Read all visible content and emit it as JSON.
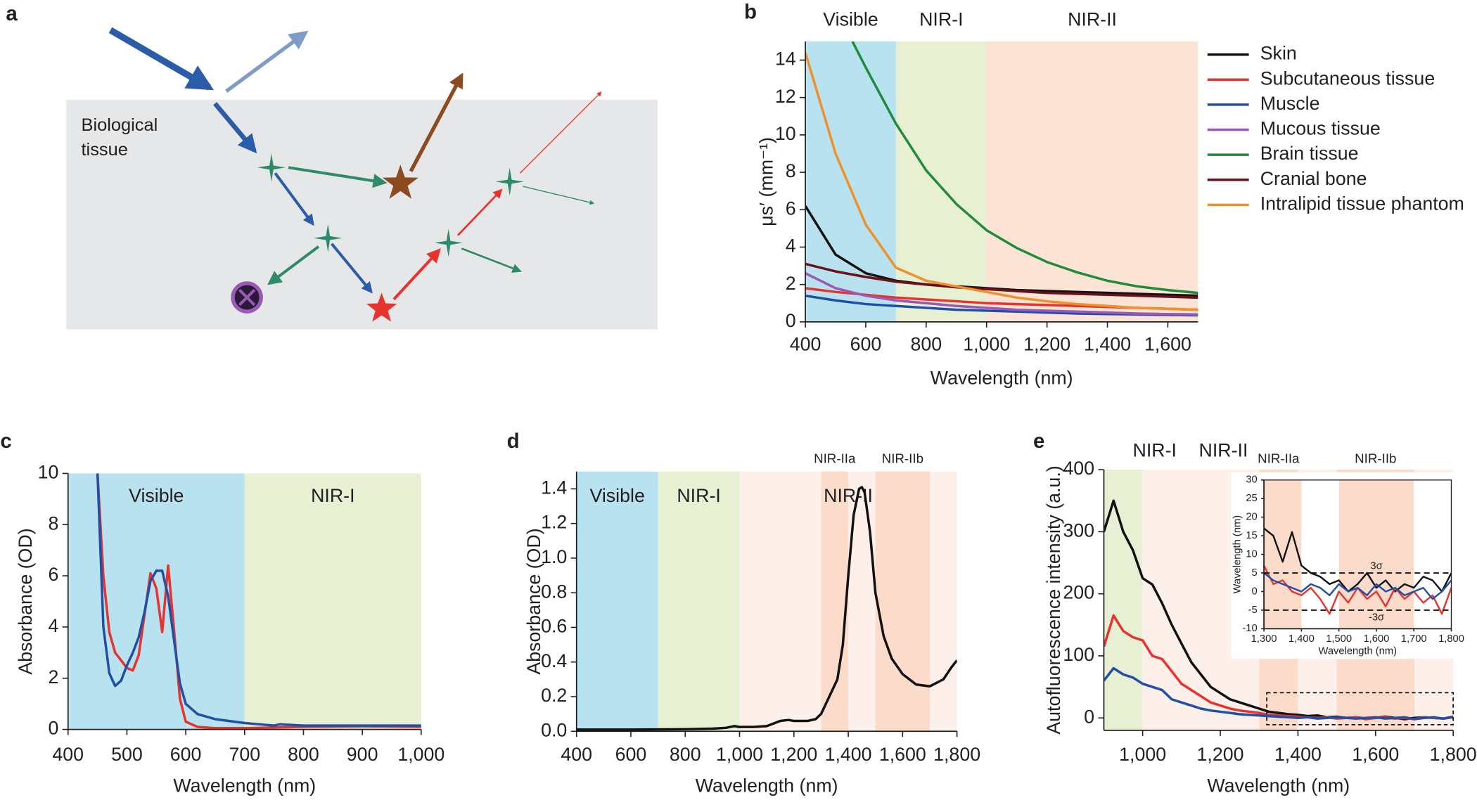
{
  "diagram": {
    "label": "a",
    "tissue_label": [
      "Biological",
      "tissue"
    ]
  },
  "chart_data": [
    {
      "type": "line",
      "panel": "b",
      "ylabel": "μs′ (mm⁻¹)",
      "xlabel": "Wavelength (nm)",
      "xlim": [
        400,
        1700
      ],
      "ylim": [
        0,
        15
      ],
      "xticks": [
        400,
        600,
        800,
        {
          "value": 1000,
          "label": "1,000"
        },
        {
          "value": 1200,
          "label": "1,200"
        },
        {
          "value": 1400,
          "label": "1,400"
        },
        {
          "value": 1600,
          "label": "1,600"
        }
      ],
      "yticks": [
        0,
        2,
        4,
        6,
        8,
        10,
        12,
        14
      ],
      "regions": [
        {
          "name": "Visible",
          "from": 400,
          "to": 700,
          "color": "#b8e2ef"
        },
        {
          "name": "NIR-I",
          "from": 700,
          "to": 1000,
          "color": "#e8f0d4"
        },
        {
          "name": "NIR-II",
          "from": 1000,
          "to": 1700,
          "color": "#fbe3d6"
        }
      ],
      "x": [
        400,
        500,
        600,
        700,
        800,
        900,
        1000,
        1100,
        1200,
        1300,
        1400,
        1500,
        1600,
        1700
      ],
      "legend": true,
      "series": [
        {
          "name": "Skin",
          "color": "#111111",
          "values": [
            6.2,
            3.6,
            2.6,
            2.2,
            2.0,
            1.9,
            1.8,
            1.7,
            1.65,
            1.6,
            1.55,
            1.5,
            1.45,
            1.4
          ]
        },
        {
          "name": "Subcutaneous tissue",
          "color": "#e8322e",
          "values": [
            1.8,
            1.6,
            1.45,
            1.3,
            1.2,
            1.1,
            1.0,
            0.95,
            0.9,
            0.85,
            0.8,
            0.75,
            0.7,
            0.65
          ]
        },
        {
          "name": "Muscle",
          "color": "#1f4fa8",
          "values": [
            1.4,
            1.15,
            0.95,
            0.85,
            0.75,
            0.65,
            0.6,
            0.55,
            0.5,
            0.45,
            0.42,
            0.4,
            0.37,
            0.35
          ]
        },
        {
          "name": "Mucous tissue",
          "color": "#9b59b6",
          "values": [
            2.6,
            1.8,
            1.4,
            1.15,
            1.0,
            0.85,
            0.75,
            0.65,
            0.6,
            0.55,
            0.5,
            0.45,
            0.42,
            0.4
          ]
        },
        {
          "name": "Brain tissue",
          "color": "#1e8c3a",
          "x": [
            556,
            600,
            700,
            800,
            900,
            1000,
            1100,
            1200,
            1300,
            1400,
            1500,
            1600,
            1700
          ],
          "values": [
            15,
            13.6,
            10.6,
            8.1,
            6.3,
            4.9,
            3.95,
            3.2,
            2.65,
            2.2,
            1.9,
            1.7,
            1.55
          ]
        },
        {
          "name": "Cranial bone",
          "color": "#6b0f1a",
          "values": [
            3.1,
            2.7,
            2.4,
            2.15,
            2.0,
            1.85,
            1.75,
            1.65,
            1.55,
            1.5,
            1.45,
            1.4,
            1.35,
            1.3
          ]
        },
        {
          "name": "Intralipid tissue phantom",
          "color": "#f0902a",
          "values": [
            14.4,
            9.0,
            5.2,
            2.9,
            2.2,
            1.9,
            1.6,
            1.3,
            1.1,
            0.95,
            0.85,
            0.75,
            0.7,
            0.65
          ]
        }
      ]
    },
    {
      "type": "line",
      "panel": "c",
      "ylabel": "Absorbance (OD)",
      "xlabel": "Wavelength (nm)",
      "xlim": [
        400,
        1000
      ],
      "ylim": [
        0,
        10
      ],
      "xticks": [
        400,
        500,
        600,
        700,
        800,
        900,
        {
          "value": 1000,
          "label": "1,000"
        }
      ],
      "yticks": [
        0,
        2,
        4,
        6,
        8,
        10
      ],
      "regions": [
        {
          "name": "Visible",
          "from": 400,
          "to": 700,
          "color": "#b8e2ef"
        },
        {
          "name": "NIR-I",
          "from": 700,
          "to": 1000,
          "color": "#e8f0d4"
        }
      ],
      "series": [
        {
          "color": "#e8322e",
          "x": [
            450,
            460,
            470,
            480,
            490,
            500,
            510,
            520,
            530,
            540,
            550,
            560,
            570,
            580,
            590,
            600,
            620,
            650,
            700,
            800,
            900,
            1000
          ],
          "values": [
            10,
            6,
            3.8,
            3.0,
            2.7,
            2.4,
            2.3,
            2.9,
            4.5,
            6.1,
            5.5,
            3.8,
            6.4,
            3.9,
            1.2,
            0.3,
            0.1,
            0.05,
            0.05,
            0.1,
            0.12,
            0.1
          ]
        },
        {
          "color": "#1f4fa8",
          "x": [
            450,
            460,
            470,
            480,
            490,
            500,
            510,
            520,
            530,
            540,
            550,
            560,
            570,
            580,
            590,
            600,
            620,
            650,
            700,
            750,
            760,
            800,
            900,
            1000
          ],
          "values": [
            10,
            4,
            2.2,
            1.7,
            1.9,
            2.5,
            3.0,
            3.6,
            4.6,
            5.8,
            6.2,
            6.2,
            5.2,
            3.5,
            1.8,
            1.0,
            0.6,
            0.4,
            0.25,
            0.15,
            0.2,
            0.15,
            0.15,
            0.15
          ]
        }
      ]
    },
    {
      "type": "line",
      "panel": "d",
      "ylabel": "Absorbance (OD)",
      "xlabel": "Wavelength (nm)",
      "xlim": [
        400,
        1800
      ],
      "ylim": [
        0,
        1.5
      ],
      "xticks": [
        400,
        600,
        800,
        {
          "value": 1000,
          "label": "1,000"
        },
        {
          "value": 1200,
          "label": "1,200"
        },
        {
          "value": 1400,
          "label": "1,400"
        },
        {
          "value": 1600,
          "label": "1,600"
        },
        {
          "value": 1800,
          "label": "1,800"
        }
      ],
      "yticks": [
        {
          "value": 0,
          "label": "0.0"
        },
        0.2,
        0.4,
        0.6,
        0.8,
        {
          "value": 1,
          "label": "1.0"
        },
        1.2,
        1.4
      ],
      "regions": [
        {
          "name": "Visible",
          "from": 400,
          "to": 700,
          "color": "#b8e2ef"
        },
        {
          "name": "NIR-I",
          "from": 700,
          "to": 1000,
          "color": "#e8f0d4"
        },
        {
          "name": "NIR-II",
          "from": 1000,
          "to": 1800,
          "color": "#fdf0ea"
        }
      ],
      "subregions": [
        {
          "name": "NIR-IIa",
          "from": 1300,
          "to": 1400,
          "color": "#fbdccb"
        },
        {
          "name": "NIR-IIb",
          "from": 1500,
          "to": 1700,
          "color": "#fbdccb"
        }
      ],
      "series": [
        {
          "color": "#111111",
          "x": [
            400,
            600,
            800,
            900,
            950,
            980,
            1000,
            1050,
            1100,
            1150,
            1180,
            1200,
            1250,
            1280,
            1300,
            1330,
            1360,
            1380,
            1400,
            1420,
            1440,
            1450,
            1460,
            1480,
            1500,
            1530,
            1560,
            1600,
            1650,
            1700,
            1750,
            1780,
            1800
          ],
          "values": [
            0.01,
            0.01,
            0.012,
            0.015,
            0.02,
            0.03,
            0.025,
            0.025,
            0.03,
            0.06,
            0.065,
            0.06,
            0.06,
            0.07,
            0.1,
            0.2,
            0.3,
            0.5,
            0.9,
            1.25,
            1.4,
            1.41,
            1.38,
            1.15,
            0.8,
            0.55,
            0.42,
            0.33,
            0.27,
            0.26,
            0.3,
            0.37,
            0.41
          ]
        }
      ]
    },
    {
      "type": "line",
      "panel": "e",
      "ylabel": "Autofluorescence intensity (a.u.)",
      "xlabel": "Wavelength (nm)",
      "xlim": [
        900,
        1800
      ],
      "ylim": [
        -20,
        400
      ],
      "xticks": [
        {
          "value": 1000,
          "label": "1,000"
        },
        {
          "value": 1200,
          "label": "1,200"
        },
        {
          "value": 1400,
          "label": "1,400"
        },
        {
          "value": 1600,
          "label": "1,600"
        },
        {
          "value": 1800,
          "label": "1,800"
        }
      ],
      "yticks": [
        0,
        100,
        200,
        300,
        400
      ],
      "regions": [
        {
          "name": "NIR-I",
          "from": 900,
          "to": 1000,
          "color": "#e8f0d4"
        },
        {
          "name": "NIR-II",
          "from": 1000,
          "to": 1800,
          "color": "#fdf0ea"
        }
      ],
      "subregions": [
        {
          "name": "NIR-IIa",
          "from": 1300,
          "to": 1400,
          "color": "#fbdccb"
        },
        {
          "name": "NIR-IIb",
          "from": 1500,
          "to": 1700,
          "color": "#fbdccb"
        }
      ],
      "x": [
        900,
        925,
        950,
        975,
        1000,
        1025,
        1050,
        1075,
        1100,
        1125,
        1150,
        1175,
        1200,
        1225,
        1250,
        1275,
        1300,
        1325,
        1350,
        1375,
        1400,
        1425,
        1450,
        1475,
        1500,
        1525,
        1550,
        1575,
        1600,
        1625,
        1650,
        1675,
        1700,
        1725,
        1750,
        1775,
        1800
      ],
      "series": [
        {
          "color": "#111111",
          "values": [
            300,
            350,
            300,
            270,
            225,
            215,
            185,
            150,
            120,
            90,
            70,
            50,
            40,
            30,
            25,
            20,
            15,
            10,
            8,
            6,
            5,
            3,
            4,
            1,
            2,
            0,
            1,
            -1,
            0,
            2,
            0,
            -2,
            0,
            1,
            0,
            -1,
            2
          ]
        },
        {
          "color": "#e8322e",
          "values": [
            115,
            165,
            140,
            130,
            125,
            100,
            95,
            75,
            55,
            45,
            35,
            25,
            20,
            15,
            12,
            10,
            8,
            5,
            4,
            3,
            2,
            1,
            0,
            1,
            -1,
            0,
            1,
            -2,
            0,
            1,
            -1,
            0,
            -2,
            1,
            0,
            -1,
            1
          ]
        },
        {
          "color": "#1f4fa8",
          "values": [
            60,
            80,
            70,
            65,
            55,
            50,
            45,
            30,
            25,
            20,
            15,
            12,
            10,
            8,
            6,
            5,
            4,
            3,
            2,
            1,
            0,
            1,
            -1,
            0,
            1,
            0,
            -1,
            0,
            1,
            -1,
            0,
            1,
            -2,
            0,
            1,
            -1,
            2
          ]
        }
      ]
    },
    {
      "type": "line",
      "ylabel": "Wavelength (nm)",
      "xlabel": "Wavelength (nm)",
      "xlim": [
        1300,
        1800
      ],
      "ylim": [
        -10,
        30
      ],
      "xticks": [
        {
          "value": 1300,
          "label": "1,300"
        },
        {
          "value": 1400,
          "label": "1,400"
        },
        {
          "value": 1500,
          "label": "1,500"
        },
        {
          "value": 1600,
          "label": "1,600"
        },
        {
          "value": 1700,
          "label": "1,700"
        },
        {
          "value": 1800,
          "label": "1,800"
        }
      ],
      "yticks": [
        -10,
        -5,
        0,
        5,
        10,
        15,
        20,
        25,
        30
      ],
      "subregions": [
        {
          "from": 1300,
          "to": 1400,
          "color": "#fbdccb"
        },
        {
          "from": 1500,
          "to": 1700,
          "color": "#fbdccb"
        }
      ],
      "hlines": [
        {
          "value": 5,
          "label": "3σ"
        },
        {
          "value": -5,
          "label": "-3σ"
        }
      ],
      "x": [
        1300,
        1325,
        1350,
        1375,
        1400,
        1425,
        1450,
        1475,
        1500,
        1525,
        1550,
        1575,
        1600,
        1625,
        1650,
        1675,
        1700,
        1725,
        1750,
        1775,
        1800
      ],
      "series": [
        {
          "color": "#111111",
          "values": [
            17,
            15,
            8,
            16,
            7,
            5,
            4,
            2,
            3,
            0,
            2,
            5,
            1,
            3,
            0,
            2,
            1,
            4,
            3,
            0,
            5
          ]
        },
        {
          "color": "#e8322e",
          "values": [
            7,
            2,
            3,
            0,
            -1,
            1,
            -2,
            -6,
            0,
            -3,
            1,
            -2,
            0,
            -4,
            1,
            -2,
            0,
            -3,
            -1,
            -6,
            1
          ]
        },
        {
          "color": "#1f4fa8",
          "values": [
            5,
            3,
            2,
            1,
            0,
            2,
            1,
            -1,
            2,
            0,
            1,
            -1,
            2,
            0,
            1,
            -1,
            0,
            1,
            -2,
            0,
            3
          ]
        }
      ]
    }
  ]
}
